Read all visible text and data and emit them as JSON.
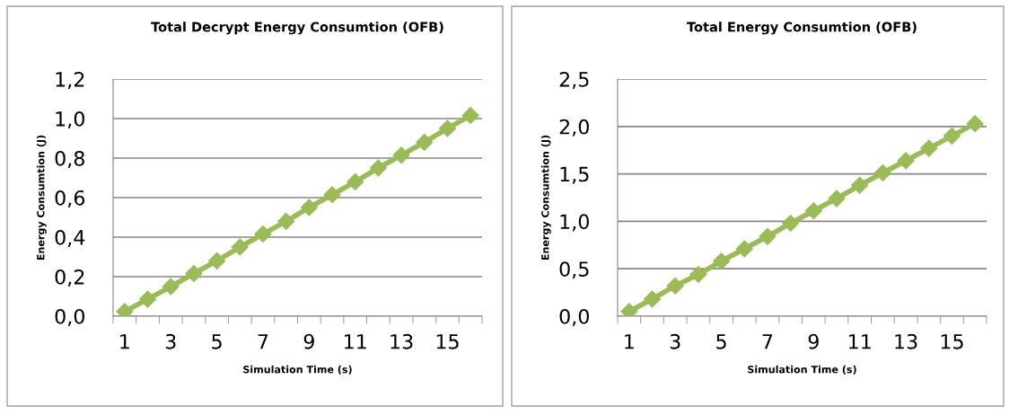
{
  "chart_data": [
    {
      "type": "line",
      "title": "Total Decrypt Energy Consumtion (OFB)",
      "xlabel": "Simulation Time (s)",
      "ylabel": "Energy Consumtion (J)",
      "categories": [
        "1",
        null,
        "3",
        null,
        "5",
        null,
        "7",
        null,
        "9",
        null,
        "11",
        null,
        "13",
        null,
        "15",
        null
      ],
      "series": [
        {
          "color": "#9bbb59",
          "values": [
            0.024,
            0.086,
            0.15,
            0.216,
            0.28,
            0.35,
            0.416,
            0.48,
            0.55,
            0.615,
            0.68,
            0.75,
            0.815,
            0.88,
            0.95,
            1.016
          ]
        }
      ],
      "ylim": [
        0,
        1.2
      ],
      "yticks": [
        {
          "value": 0,
          "label": "0,0"
        },
        {
          "value": 0.2,
          "label": "0,2"
        },
        {
          "value": 0.4,
          "label": "0,4"
        },
        {
          "value": 0.6,
          "label": "0,6"
        },
        {
          "value": 0.8,
          "label": "0,8"
        },
        {
          "value": 1.0,
          "label": "1,0"
        },
        {
          "value": 1.2,
          "label": "1,2"
        }
      ],
      "grid": "y",
      "marker": "diamond",
      "line_style": "solid"
    },
    {
      "type": "line",
      "title": "Total Energy Consumtion (OFB)",
      "xlabel": "Simulation Time (s)",
      "ylabel": "Energy Consumtion (J)",
      "categories": [
        "1",
        null,
        "3",
        null,
        "5",
        null,
        "7",
        null,
        "9",
        null,
        "11",
        null,
        "13",
        null,
        "15",
        null
      ],
      "series": [
        {
          "color": "#9bbb59",
          "values": [
            0.05,
            0.18,
            0.32,
            0.44,
            0.58,
            0.71,
            0.84,
            0.98,
            1.11,
            1.24,
            1.38,
            1.51,
            1.64,
            1.77,
            1.9,
            2.03
          ]
        }
      ],
      "ylim": [
        0,
        2.5
      ],
      "yticks": [
        {
          "value": 0,
          "label": "0,0"
        },
        {
          "value": 0.5,
          "label": "0,5"
        },
        {
          "value": 1.0,
          "label": "1,0"
        },
        {
          "value": 1.5,
          "label": "1,5"
        },
        {
          "value": 2.0,
          "label": "2,0"
        },
        {
          "value": 2.5,
          "label": "2,5"
        }
      ],
      "grid": "y",
      "marker": "diamond",
      "line_style": "solid"
    }
  ]
}
